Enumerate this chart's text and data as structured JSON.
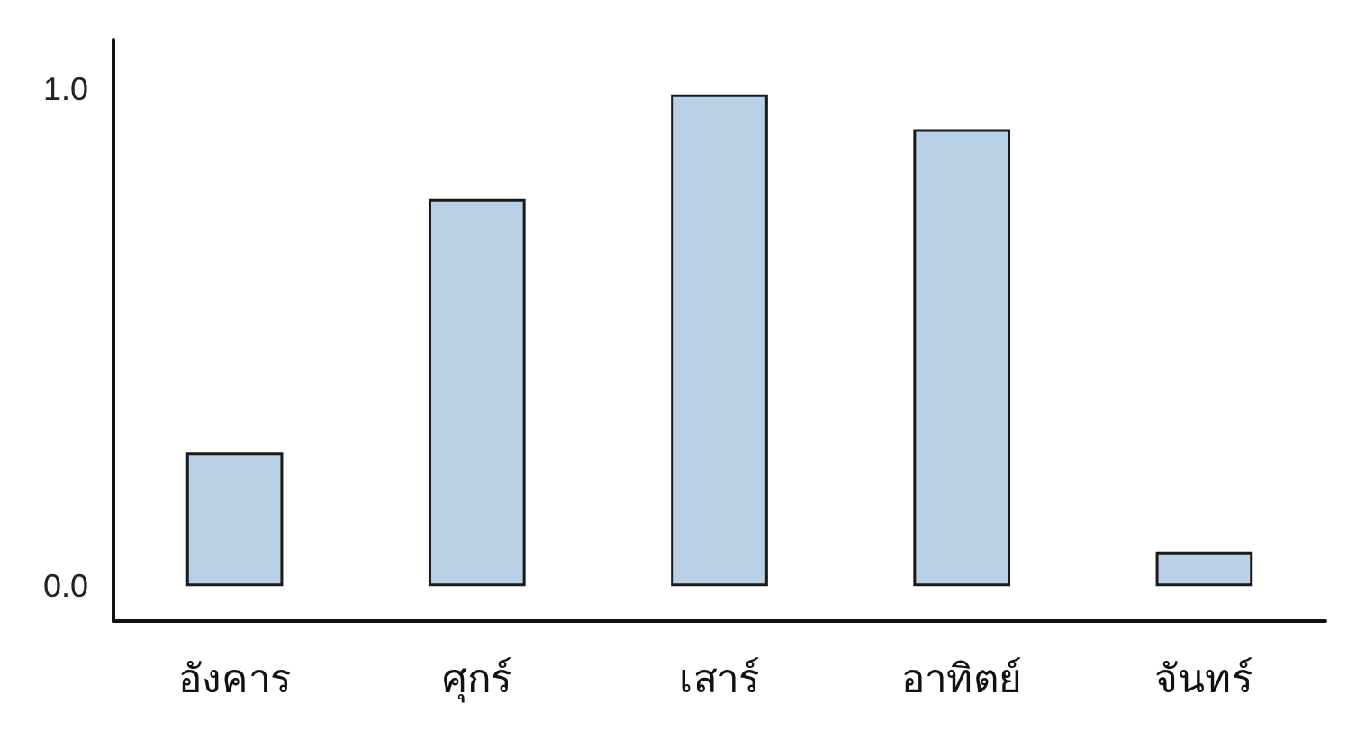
{
  "chart_data": {
    "type": "bar",
    "categories": [
      "อังคาร",
      "ศุกร์",
      "เสาร์",
      "อาทิตย์",
      "จันทร์"
    ],
    "values": [
      0.27,
      0.78,
      0.99,
      0.92,
      0.07
    ],
    "color": "#b9d1e6",
    "ylim": [
      -0.07,
      1.1
    ],
    "yticks": [
      {
        "value": 0,
        "label": "0.0"
      },
      {
        "value": 1,
        "label": "1.0"
      }
    ],
    "grid": false
  }
}
